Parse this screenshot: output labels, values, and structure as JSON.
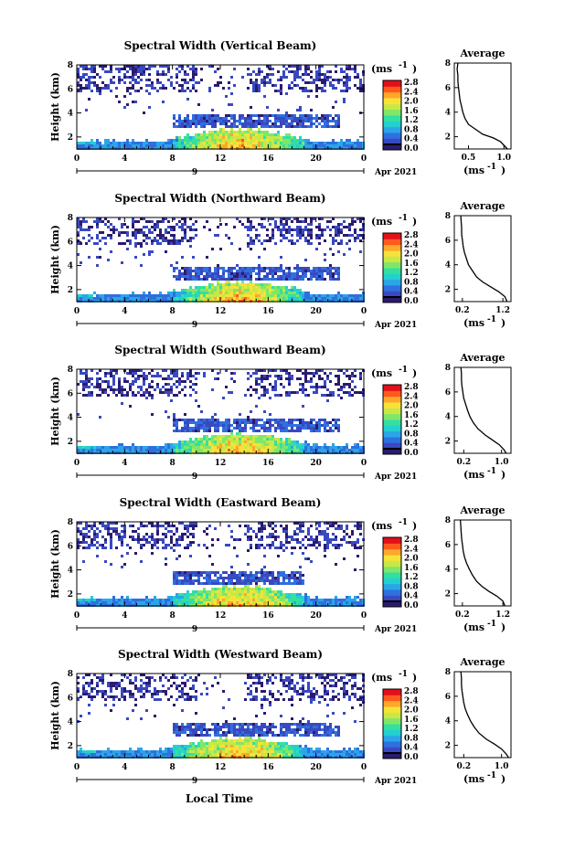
{
  "colors": {
    "scale": [
      "#2b1b6e",
      "#3949c0",
      "#2f6fe0",
      "#2aa6e8",
      "#23d0cf",
      "#33e0a0",
      "#7fe66a",
      "#c8e845",
      "#f7e23a",
      "#ffa72a",
      "#ff5a1e",
      "#e3101a"
    ],
    "axis": "#000000"
  },
  "figure": {
    "xlabel": "Local Time",
    "date_label": "Apr 2021",
    "day_label": "9",
    "ylabel": "Height (km)",
    "unit_label": "(ms",
    "unit_sup": "-1",
    "avg_title": "Average",
    "avg_xlabel": "(ms",
    "avg_xlabel_sup": "-1"
  },
  "chart_data": [
    {
      "type": "heatmap",
      "title": "Spectral Width (Vertical Beam)",
      "x_ticks": [
        "0",
        "4",
        "8",
        "12",
        "16",
        "20",
        "0"
      ],
      "xlim": [
        0,
        24
      ],
      "y_ticks": [
        "2",
        "4",
        "6",
        "8"
      ],
      "ylim": [
        1,
        8
      ],
      "colorbar_ticks": [
        "0.0",
        "0.4",
        "0.8",
        "1.2",
        "1.6",
        "2.0",
        "2.4",
        "2.8"
      ],
      "colorbar_range": [
        0,
        2.8
      ],
      "average": {
        "title": "Average",
        "x_ticks": [
          "0.5",
          "1.0"
        ],
        "xlim": [
          0.3,
          1.1
        ],
        "y_ticks": [
          "2",
          "4",
          "6",
          "8"
        ],
        "ylim": [
          1,
          8
        ],
        "profile": [
          [
            1.05,
            1.0
          ],
          [
            1.0,
            1.3
          ],
          [
            0.95,
            1.6
          ],
          [
            0.85,
            1.9
          ],
          [
            0.7,
            2.2
          ],
          [
            0.6,
            2.6
          ],
          [
            0.5,
            3.0
          ],
          [
            0.45,
            3.5
          ],
          [
            0.42,
            4.0
          ],
          [
            0.4,
            4.5
          ],
          [
            0.38,
            5.0
          ],
          [
            0.37,
            5.5
          ],
          [
            0.36,
            6.0
          ],
          [
            0.35,
            6.5
          ],
          [
            0.35,
            7.0
          ],
          [
            0.34,
            7.5
          ],
          [
            0.35,
            8.0
          ]
        ]
      }
    },
    {
      "type": "heatmap",
      "title": "Spectral Width (Northward Beam)",
      "x_ticks": [
        "0",
        "4",
        "8",
        "12",
        "16",
        "20",
        "0"
      ],
      "xlim": [
        0,
        24
      ],
      "y_ticks": [
        "2",
        "4",
        "6",
        "8"
      ],
      "ylim": [
        1,
        8
      ],
      "colorbar_ticks": [
        "0.0",
        "0.4",
        "0.8",
        "1.2",
        "1.6",
        "2.0",
        "2.4",
        "2.8"
      ],
      "colorbar_range": [
        0,
        2.8
      ],
      "average": {
        "title": "Average",
        "x_ticks": [
          "0.2",
          "1.2"
        ],
        "xlim": [
          0.0,
          1.4
        ],
        "y_ticks": [
          "2",
          "4",
          "6",
          "8"
        ],
        "ylim": [
          1,
          8
        ],
        "profile": [
          [
            1.3,
            1.0
          ],
          [
            1.25,
            1.4
          ],
          [
            1.1,
            1.8
          ],
          [
            0.9,
            2.2
          ],
          [
            0.7,
            2.6
          ],
          [
            0.55,
            3.0
          ],
          [
            0.45,
            3.5
          ],
          [
            0.35,
            4.0
          ],
          [
            0.3,
            4.5
          ],
          [
            0.25,
            5.0
          ],
          [
            0.22,
            5.5
          ],
          [
            0.2,
            6.0
          ],
          [
            0.18,
            6.5
          ],
          [
            0.18,
            7.0
          ],
          [
            0.17,
            7.5
          ],
          [
            0.16,
            8.0
          ]
        ]
      }
    },
    {
      "type": "heatmap",
      "title": "Spectral Width (Southward Beam)",
      "x_ticks": [
        "0",
        "4",
        "8",
        "12",
        "16",
        "20",
        "0"
      ],
      "xlim": [
        0,
        24
      ],
      "y_ticks": [
        "2",
        "4",
        "6",
        "8"
      ],
      "ylim": [
        1,
        8
      ],
      "colorbar_ticks": [
        "0.0",
        "0.4",
        "0.8",
        "1.2",
        "1.6",
        "2.0",
        "2.4",
        "2.8"
      ],
      "colorbar_range": [
        0,
        2.8
      ],
      "average": {
        "title": "Average",
        "x_ticks": [
          "0.2",
          "1.0"
        ],
        "xlim": [
          0.0,
          1.2
        ],
        "y_ticks": [
          "2",
          "4",
          "6",
          "8"
        ],
        "ylim": [
          1,
          8
        ],
        "profile": [
          [
            1.1,
            1.0
          ],
          [
            1.05,
            1.3
          ],
          [
            0.95,
            1.7
          ],
          [
            0.8,
            2.1
          ],
          [
            0.65,
            2.5
          ],
          [
            0.5,
            3.0
          ],
          [
            0.4,
            3.5
          ],
          [
            0.33,
            4.0
          ],
          [
            0.28,
            4.5
          ],
          [
            0.24,
            5.0
          ],
          [
            0.2,
            5.5
          ],
          [
            0.18,
            6.0
          ],
          [
            0.16,
            6.5
          ],
          [
            0.15,
            7.0
          ],
          [
            0.15,
            7.5
          ],
          [
            0.14,
            8.0
          ]
        ]
      }
    },
    {
      "type": "heatmap",
      "title": "Spectral Width (Eastward Beam)",
      "x_ticks": [
        "0",
        "4",
        "8",
        "12",
        "16",
        "20",
        "0"
      ],
      "xlim": [
        0,
        24
      ],
      "y_ticks": [
        "2",
        "4",
        "6",
        "8"
      ],
      "ylim": [
        1,
        8
      ],
      "colorbar_ticks": [
        "0.0",
        "0.4",
        "0.8",
        "1.2",
        "1.6",
        "2.0",
        "2.4",
        "2.8"
      ],
      "colorbar_range": [
        0,
        2.8
      ],
      "average": {
        "title": "Average",
        "x_ticks": [
          "0.2",
          "1.2"
        ],
        "xlim": [
          0.0,
          1.4
        ],
        "y_ticks": [
          "2",
          "4",
          "6",
          "8"
        ],
        "ylim": [
          1,
          8
        ],
        "profile": [
          [
            1.25,
            1.0
          ],
          [
            1.2,
            1.4
          ],
          [
            1.05,
            1.8
          ],
          [
            0.85,
            2.2
          ],
          [
            0.68,
            2.6
          ],
          [
            0.55,
            3.0
          ],
          [
            0.45,
            3.5
          ],
          [
            0.37,
            4.0
          ],
          [
            0.3,
            4.5
          ],
          [
            0.25,
            5.0
          ],
          [
            0.22,
            5.5
          ],
          [
            0.2,
            6.0
          ],
          [
            0.18,
            6.5
          ],
          [
            0.17,
            7.0
          ],
          [
            0.16,
            7.5
          ],
          [
            0.15,
            8.0
          ]
        ]
      }
    },
    {
      "type": "heatmap",
      "title": "Spectral Width (Westward Beam)",
      "x_ticks": [
        "0",
        "4",
        "8",
        "12",
        "16",
        "20",
        "0"
      ],
      "xlim": [
        0,
        24
      ],
      "y_ticks": [
        "2",
        "4",
        "6",
        "8"
      ],
      "ylim": [
        1,
        8
      ],
      "colorbar_ticks": [
        "0.0",
        "0.4",
        "0.8",
        "1.2",
        "1.6",
        "2.0",
        "2.4",
        "2.8"
      ],
      "colorbar_range": [
        0,
        2.8
      ],
      "average": {
        "title": "Average",
        "x_ticks": [
          "0.2",
          "1.0"
        ],
        "xlim": [
          0.0,
          1.2
        ],
        "y_ticks": [
          "2",
          "4",
          "6",
          "8"
        ],
        "ylim": [
          1,
          8
        ],
        "profile": [
          [
            1.15,
            1.0
          ],
          [
            1.1,
            1.3
          ],
          [
            1.0,
            1.7
          ],
          [
            0.85,
            2.1
          ],
          [
            0.68,
            2.5
          ],
          [
            0.52,
            3.0
          ],
          [
            0.42,
            3.5
          ],
          [
            0.34,
            4.0
          ],
          [
            0.28,
            4.5
          ],
          [
            0.23,
            5.0
          ],
          [
            0.2,
            5.5
          ],
          [
            0.18,
            6.0
          ],
          [
            0.16,
            6.5
          ],
          [
            0.15,
            7.0
          ],
          [
            0.15,
            7.5
          ],
          [
            0.14,
            8.0
          ]
        ]
      }
    }
  ]
}
